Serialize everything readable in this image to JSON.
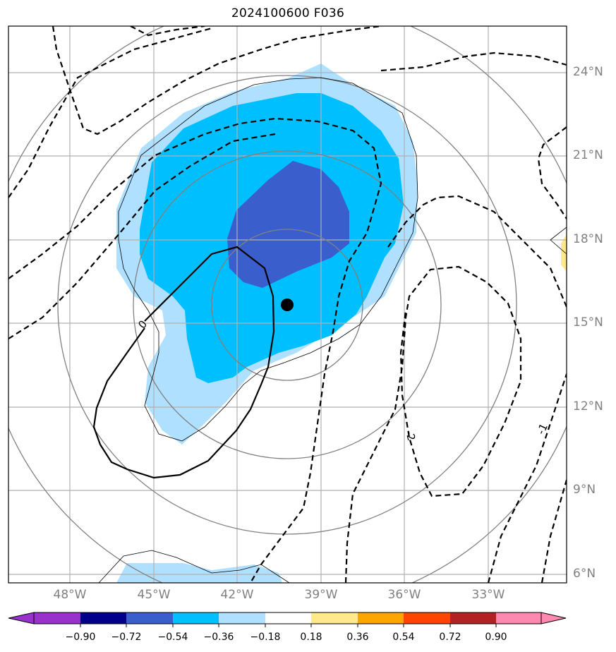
{
  "title": "2024100600 F036",
  "map": {
    "lat_labels": [
      "24°N",
      "21°N",
      "18°N",
      "15°N",
      "12°N",
      "9°N",
      "6°N"
    ],
    "lon_labels": [
      "48°W",
      "45°W",
      "42°W",
      "39°W",
      "36°W",
      "33°W"
    ],
    "contour_labels": [
      "0",
      "-2",
      "-1"
    ],
    "storm_center": {
      "lat": 15.6,
      "lon": -40.2
    }
  },
  "colorbar": {
    "ticks": [
      "−0.90",
      "−0.72",
      "−0.54",
      "−0.36",
      "−0.18",
      "0.18",
      "0.36",
      "0.54",
      "0.72",
      "0.90"
    ],
    "colors": [
      "#9932cc",
      "#00008b",
      "#3a5fcd",
      "#00bfff",
      "#b0e0ff",
      "#ffffff",
      "#ffe98a",
      "#ffa500",
      "#ff4500",
      "#b22222",
      "#ff88b0"
    ]
  },
  "colors": {
    "grid": "#b0b0b0",
    "range_ring": "#808080",
    "shade_light_blue": "#b0e0ff",
    "shade_mid_blue": "#00bfff",
    "shade_dark_blue": "#3a5fcd",
    "shade_yellow": "#ffe98a"
  }
}
